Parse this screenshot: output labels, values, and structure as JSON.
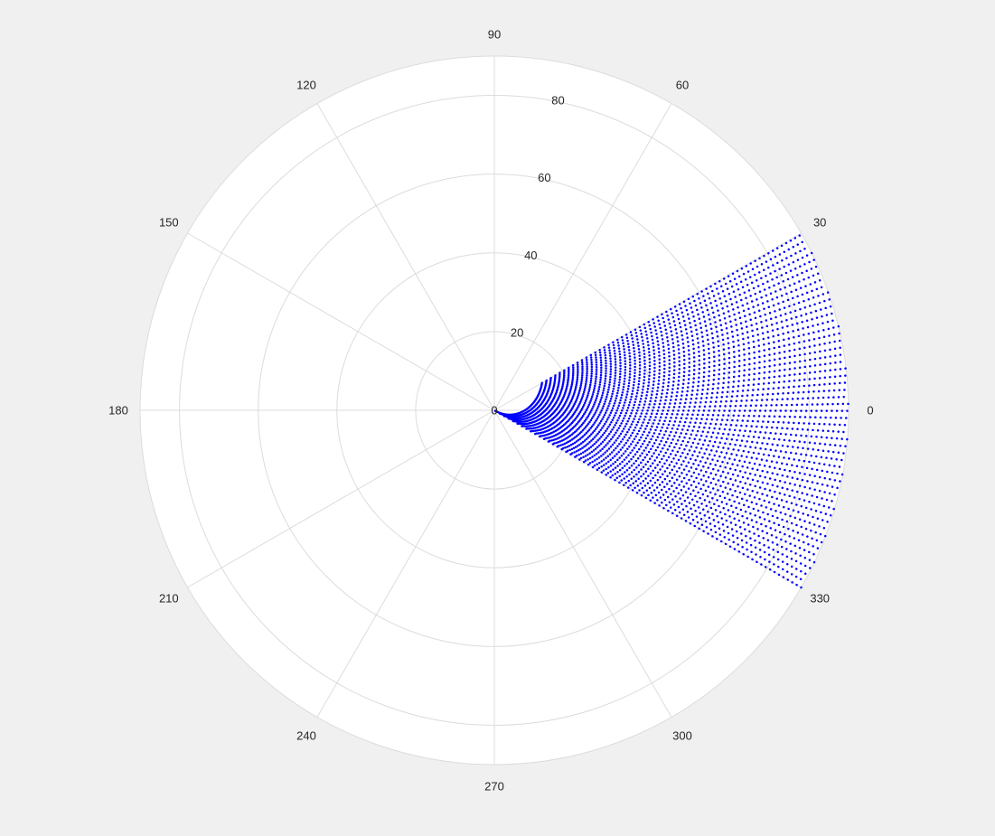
{
  "figure": {
    "background": "#f0f0f0"
  },
  "chart_data": {
    "type": "scatter",
    "coordinate_system": "polar",
    "title": "",
    "theta_unit": "degrees",
    "rlim": [
      0,
      90
    ],
    "r_ticks": [
      0,
      20,
      40,
      60,
      80
    ],
    "r_tick_labels": [
      "0",
      "20",
      "40",
      "60",
      "80"
    ],
    "theta_ticks": [
      0,
      30,
      60,
      90,
      120,
      150,
      180,
      210,
      240,
      270,
      300,
      330
    ],
    "theta_tick_labels": [
      "0",
      "30",
      "60",
      "90",
      "120",
      "150",
      "180",
      "210",
      "240",
      "270",
      "300",
      "330"
    ],
    "grid": true,
    "theta_zero_location": "right",
    "theta_direction": "counterclockwise",
    "axes_background": "#ffffff",
    "grid_color": "#dcdcdc",
    "series": [
      {
        "marker": "point",
        "color": "#0000ff",
        "region": {
          "description_values": "dense sector of points spanning theta from -30 to 30 degrees",
          "theta_min": -30,
          "theta_max": 30,
          "r_max": 90,
          "r_min_at_theta_max": 14,
          "r_min_at_theta_min": 0,
          "inner_boundary": "spiral"
        }
      }
    ]
  }
}
